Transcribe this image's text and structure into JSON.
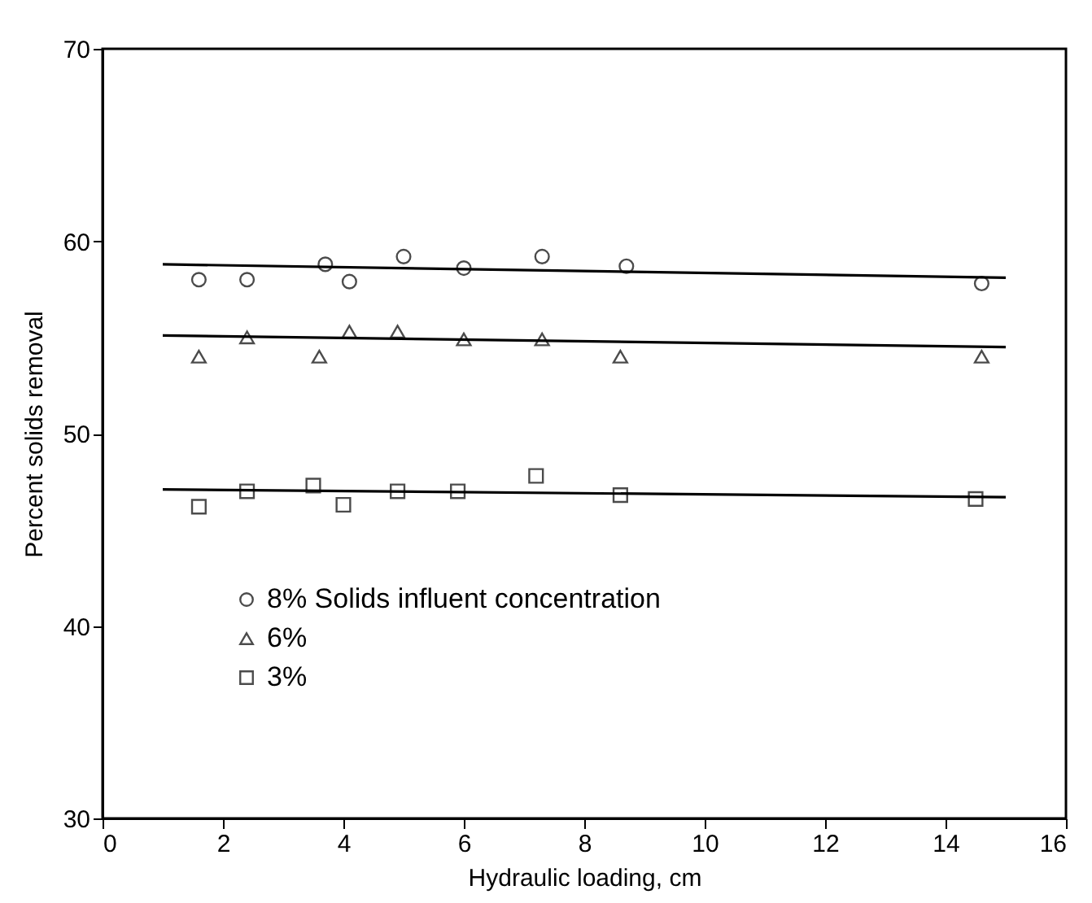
{
  "chart_data": {
    "type": "scatter",
    "xlabel": "Hydraulic loading, cm",
    "ylabel": "Percent solids removal",
    "xlim": [
      0,
      16
    ],
    "ylim": [
      30,
      70
    ],
    "xticks": [
      0,
      2,
      4,
      6,
      8,
      10,
      12,
      14,
      16
    ],
    "yticks": [
      30,
      40,
      50,
      60,
      70
    ],
    "grid": false,
    "legend": "bottom left",
    "series": [
      {
        "name": "8% Solids influent concentration",
        "marker": "circle",
        "color": "#000000",
        "x": [
          1.6,
          2.4,
          3.7,
          4.1,
          5.0,
          6.0,
          7.3,
          8.7,
          14.6
        ],
        "values": [
          58,
          58,
          58.8,
          57.9,
          59.2,
          58.6,
          59.2,
          58.7,
          57.8
        ]
      },
      {
        "name": "6%",
        "marker": "triangle",
        "color": "#000000",
        "x": [
          1.6,
          2.4,
          3.6,
          4.1,
          4.9,
          6.0,
          7.3,
          8.6,
          14.6
        ],
        "values": [
          54,
          55,
          54,
          55.3,
          55.3,
          54.9,
          54.9,
          54,
          54
        ]
      },
      {
        "name": "3%",
        "marker": "square",
        "color": "#000000",
        "x": [
          1.6,
          2.4,
          3.5,
          4.0,
          4.9,
          5.9,
          7.2,
          8.6,
          14.5
        ],
        "values": [
          46.2,
          47,
          47.3,
          46.3,
          47,
          47,
          47.8,
          46.8,
          46.6
        ]
      },
      {
        "type": "line",
        "marker": "none",
        "line_style": "solid",
        "color": "#000000",
        "x": [
          1,
          15
        ],
        "values": [
          58.8,
          58.1
        ]
      },
      {
        "type": "line",
        "marker": "none",
        "line_style": "solid",
        "color": "#000000",
        "x": [
          1,
          15
        ],
        "values": [
          55.1,
          54.5
        ]
      },
      {
        "type": "line",
        "marker": "none",
        "line_style": "solid",
        "color": "#000000",
        "x": [
          1,
          15
        ],
        "values": [
          47.1,
          46.7
        ]
      }
    ]
  }
}
